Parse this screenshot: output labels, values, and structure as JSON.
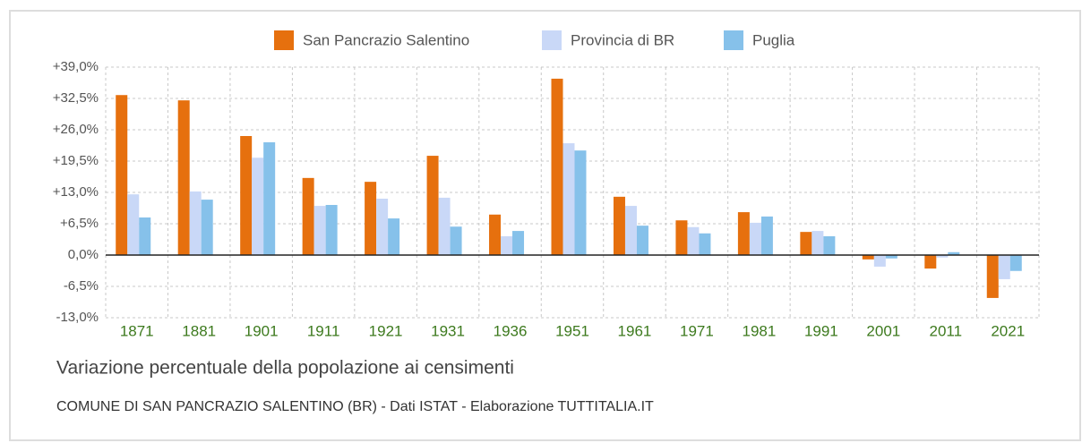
{
  "chart_data": {
    "type": "bar",
    "title": "Variazione percentuale della popolazione ai censimenti",
    "subtitle": "COMUNE DI SAN PANCRAZIO SALENTINO (BR) - Dati ISTAT - Elaborazione TUTTITALIA.IT",
    "categories": [
      "1871",
      "1881",
      "1901",
      "1911",
      "1921",
      "1931",
      "1936",
      "1951",
      "1961",
      "1971",
      "1981",
      "1991",
      "2001",
      "2011",
      "2021"
    ],
    "series": [
      {
        "name": "San Pancrazio Salentino",
        "color": "#e6700e",
        "values": [
          33.2,
          32.1,
          24.7,
          16.0,
          15.2,
          20.6,
          8.4,
          36.6,
          12.1,
          7.2,
          8.9,
          4.8,
          -0.9,
          -2.8,
          -8.9
        ]
      },
      {
        "name": "Provincia di BR",
        "color": "#c9d8f7",
        "values": [
          12.6,
          13.2,
          20.2,
          10.2,
          11.7,
          11.9,
          3.9,
          23.2,
          10.2,
          5.8,
          6.7,
          5.0,
          -2.4,
          -0.5,
          -5.0
        ]
      },
      {
        "name": "Puglia",
        "color": "#86c1ea",
        "values": [
          7.8,
          11.5,
          23.4,
          10.4,
          7.6,
          5.9,
          5.0,
          21.7,
          6.1,
          4.5,
          8.0,
          3.9,
          -0.7,
          0.6,
          -3.3
        ]
      }
    ],
    "ylim": [
      -13,
      39
    ],
    "yticks": [
      {
        "value": -13,
        "label": "-13,0%"
      },
      {
        "value": -6.5,
        "label": "-6,5%"
      },
      {
        "value": 0,
        "label": "0,0%"
      },
      {
        "value": 6.5,
        "label": "+6,5%"
      },
      {
        "value": 13,
        "label": "+13,0%"
      },
      {
        "value": 19.5,
        "label": "+19,5%"
      },
      {
        "value": 26,
        "label": "+26,0%"
      },
      {
        "value": 32.5,
        "label": "+32,5%"
      },
      {
        "value": 39,
        "label": "+39,0%"
      }
    ],
    "grid": true,
    "legend": "top"
  }
}
